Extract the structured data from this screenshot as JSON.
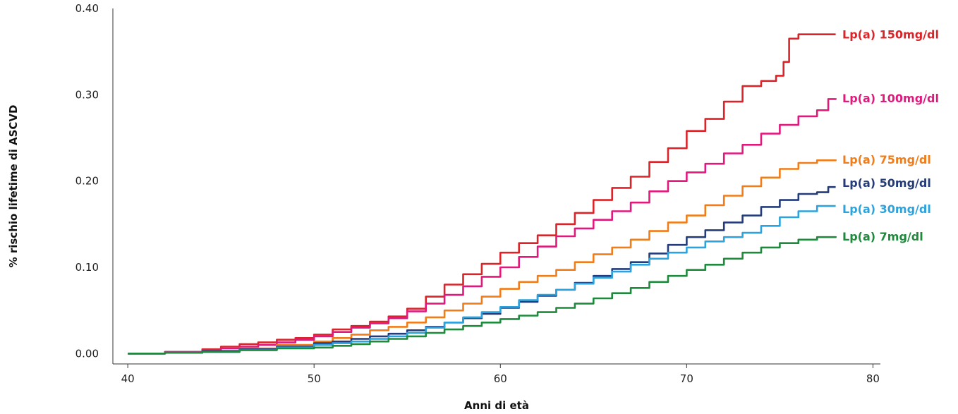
{
  "chart_data": {
    "type": "line",
    "title": "",
    "xlabel": "Anni di età",
    "ylabel": "% rischio lifetime di ASCVD",
    "xlim": [
      39.2,
      80.4
    ],
    "ylim": [
      -0.012,
      0.4
    ],
    "x_ticks": [
      40,
      50,
      60,
      70,
      80
    ],
    "x_tick_labels": [
      "40",
      "50",
      "60",
      "70",
      "80"
    ],
    "y_ticks": [
      0.0,
      0.1,
      0.2,
      0.3,
      0.4
    ],
    "y_tick_labels": [
      "0.00",
      "0.10",
      "0.20",
      "0.30",
      "0.40"
    ],
    "grid": false,
    "legend": "inline labels at right end of lines",
    "series": [
      {
        "name": "Lp(a) 150mg/dl",
        "color": "#d9252a",
        "x": [
          40,
          42,
          44,
          45,
          46,
          47,
          48,
          49,
          50,
          51,
          52,
          53,
          54,
          55,
          56,
          57,
          58,
          59,
          60,
          61,
          62,
          63,
          64,
          65,
          66,
          67,
          68,
          69,
          70,
          71,
          72,
          73,
          74,
          74.8,
          75.2,
          75.5,
          76,
          78
        ],
        "y": [
          0,
          0.002,
          0.005,
          0.008,
          0.011,
          0.013,
          0.016,
          0.018,
          0.022,
          0.028,
          0.032,
          0.037,
          0.043,
          0.052,
          0.066,
          0.08,
          0.092,
          0.104,
          0.117,
          0.128,
          0.137,
          0.15,
          0.163,
          0.178,
          0.192,
          0.205,
          0.222,
          0.238,
          0.258,
          0.272,
          0.292,
          0.31,
          0.316,
          0.322,
          0.338,
          0.365,
          0.37,
          0.37
        ]
      },
      {
        "name": "Lp(a) 100mg/dl",
        "color": "#e0197d",
        "x": [
          40,
          42,
          44,
          45,
          46,
          47,
          48,
          49,
          50,
          51,
          52,
          53,
          54,
          55,
          56,
          57,
          58,
          59,
          60,
          61,
          62,
          63,
          64,
          65,
          66,
          67,
          68,
          69,
          70,
          71,
          72,
          73,
          74,
          75,
          76,
          77,
          77.6,
          78
        ],
        "y": [
          0,
          0.002,
          0.004,
          0.006,
          0.008,
          0.01,
          0.013,
          0.016,
          0.02,
          0.025,
          0.03,
          0.035,
          0.041,
          0.049,
          0.058,
          0.068,
          0.078,
          0.089,
          0.1,
          0.112,
          0.124,
          0.136,
          0.145,
          0.155,
          0.165,
          0.175,
          0.188,
          0.2,
          0.21,
          0.22,
          0.232,
          0.242,
          0.255,
          0.265,
          0.275,
          0.282,
          0.295,
          0.296
        ]
      },
      {
        "name": "Lp(a) 75mg/dl",
        "color": "#ef7d1a",
        "x": [
          40,
          42,
          44,
          46,
          48,
          50,
          51,
          52,
          53,
          54,
          55,
          56,
          57,
          58,
          59,
          60,
          61,
          62,
          63,
          64,
          65,
          66,
          67,
          68,
          69,
          70,
          71,
          72,
          73,
          74,
          75,
          76,
          77,
          78
        ],
        "y": [
          0,
          0.001,
          0.003,
          0.006,
          0.01,
          0.014,
          0.018,
          0.022,
          0.027,
          0.031,
          0.036,
          0.042,
          0.05,
          0.058,
          0.066,
          0.075,
          0.083,
          0.09,
          0.097,
          0.106,
          0.115,
          0.123,
          0.132,
          0.142,
          0.152,
          0.16,
          0.172,
          0.183,
          0.194,
          0.204,
          0.214,
          0.221,
          0.224,
          0.225
        ]
      },
      {
        "name": "Lp(a) 50mg/dl",
        "color": "#243c7a",
        "x": [
          40,
          42,
          44,
          46,
          48,
          50,
          51,
          52,
          53,
          54,
          55,
          56,
          57,
          58,
          59,
          60,
          61,
          62,
          63,
          64,
          65,
          66,
          67,
          68,
          69,
          70,
          71,
          72,
          73,
          74,
          75,
          76,
          77,
          77.6,
          78
        ],
        "y": [
          0,
          0.001,
          0.003,
          0.005,
          0.008,
          0.012,
          0.014,
          0.017,
          0.02,
          0.023,
          0.027,
          0.031,
          0.036,
          0.041,
          0.046,
          0.053,
          0.06,
          0.067,
          0.074,
          0.082,
          0.09,
          0.098,
          0.106,
          0.116,
          0.126,
          0.135,
          0.143,
          0.152,
          0.16,
          0.17,
          0.178,
          0.185,
          0.187,
          0.193,
          0.193
        ]
      },
      {
        "name": "Lp(a) 30mg/dl",
        "color": "#2ca3dc",
        "x": [
          40,
          42,
          44,
          46,
          48,
          50,
          51,
          52,
          53,
          54,
          55,
          56,
          57,
          58,
          59,
          60,
          61,
          62,
          63,
          64,
          65,
          66,
          67,
          68,
          69,
          70,
          71,
          72,
          73,
          74,
          75,
          76,
          77,
          78
        ],
        "y": [
          0,
          0.001,
          0.002,
          0.004,
          0.007,
          0.01,
          0.012,
          0.014,
          0.017,
          0.02,
          0.024,
          0.03,
          0.036,
          0.042,
          0.048,
          0.054,
          0.062,
          0.068,
          0.074,
          0.081,
          0.088,
          0.095,
          0.103,
          0.11,
          0.117,
          0.123,
          0.13,
          0.135,
          0.14,
          0.148,
          0.158,
          0.165,
          0.171,
          0.171
        ]
      },
      {
        "name": "Lp(a) 7mg/dl",
        "color": "#1e8a3c",
        "x": [
          40,
          42,
          44,
          46,
          48,
          50,
          51,
          52,
          53,
          54,
          55,
          56,
          57,
          58,
          59,
          60,
          61,
          62,
          63,
          64,
          65,
          66,
          67,
          68,
          69,
          70,
          71,
          72,
          73,
          74,
          75,
          76,
          77,
          78
        ],
        "y": [
          0,
          0.001,
          0.002,
          0.004,
          0.006,
          0.007,
          0.009,
          0.011,
          0.014,
          0.017,
          0.02,
          0.024,
          0.028,
          0.032,
          0.036,
          0.04,
          0.044,
          0.048,
          0.053,
          0.058,
          0.064,
          0.07,
          0.076,
          0.083,
          0.09,
          0.097,
          0.103,
          0.11,
          0.117,
          0.123,
          0.128,
          0.132,
          0.135,
          0.136
        ]
      }
    ]
  }
}
